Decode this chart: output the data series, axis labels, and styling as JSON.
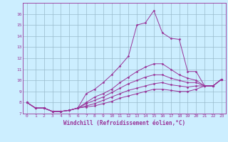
{
  "xlabel": "Windchill (Refroidissement éolien,°C)",
  "x_values": [
    0,
    1,
    2,
    3,
    4,
    5,
    6,
    7,
    8,
    9,
    10,
    11,
    12,
    13,
    14,
    15,
    16,
    17,
    18,
    19,
    20,
    21,
    22,
    23
  ],
  "series": [
    [
      8.0,
      7.5,
      7.5,
      7.2,
      7.2,
      7.3,
      7.5,
      8.8,
      9.2,
      9.8,
      10.5,
      11.3,
      12.2,
      15.0,
      15.2,
      16.3,
      14.3,
      13.8,
      13.7,
      10.8,
      10.8,
      9.5,
      9.5,
      10.1
    ],
    [
      8.0,
      7.5,
      7.5,
      7.2,
      7.2,
      7.3,
      7.5,
      8.0,
      8.5,
      8.8,
      9.2,
      9.8,
      10.3,
      10.8,
      11.2,
      11.5,
      11.5,
      11.0,
      10.5,
      10.2,
      10.0,
      9.5,
      9.5,
      10.1
    ],
    [
      8.0,
      7.5,
      7.5,
      7.2,
      7.2,
      7.3,
      7.5,
      7.9,
      8.2,
      8.5,
      8.9,
      9.3,
      9.7,
      10.0,
      10.3,
      10.5,
      10.5,
      10.2,
      10.0,
      9.8,
      9.8,
      9.5,
      9.5,
      10.1
    ],
    [
      8.0,
      7.5,
      7.5,
      7.2,
      7.2,
      7.3,
      7.5,
      7.7,
      7.9,
      8.2,
      8.5,
      8.8,
      9.1,
      9.3,
      9.5,
      9.7,
      9.8,
      9.6,
      9.5,
      9.4,
      9.5,
      9.5,
      9.5,
      10.1
    ],
    [
      8.0,
      7.5,
      7.5,
      7.2,
      7.2,
      7.3,
      7.5,
      7.6,
      7.7,
      7.9,
      8.1,
      8.4,
      8.6,
      8.8,
      9.0,
      9.2,
      9.2,
      9.1,
      9.0,
      9.0,
      9.2,
      9.5,
      9.5,
      10.1
    ]
  ],
  "line_color": "#993399",
  "marker": "D",
  "markersize": 1.5,
  "linewidth": 0.7,
  "bg_color": "#cceeff",
  "grid_color": "#99bbcc",
  "ylim": [
    7,
    17
  ],
  "xlim_min": -0.5,
  "xlim_max": 23.5,
  "yticks": [
    7,
    8,
    9,
    10,
    11,
    12,
    13,
    14,
    15,
    16
  ],
  "xticks": [
    0,
    1,
    2,
    3,
    4,
    5,
    6,
    7,
    8,
    9,
    10,
    11,
    12,
    13,
    14,
    15,
    16,
    17,
    18,
    19,
    20,
    21,
    22,
    23
  ],
  "tick_fontsize": 4.5,
  "xlabel_fontsize": 5.5
}
